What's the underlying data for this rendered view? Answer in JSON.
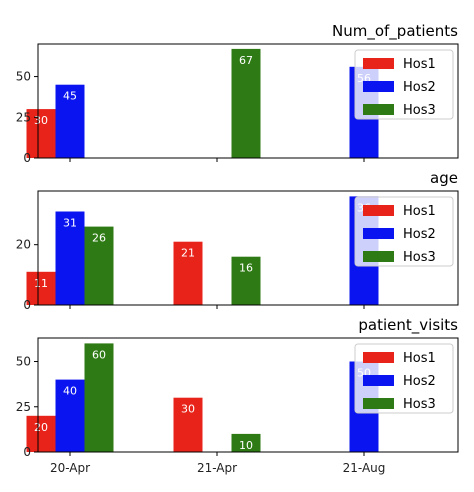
{
  "chart_data": [
    {
      "type": "bar",
      "title": "Num_of_patients",
      "categories": [
        "20-Apr",
        "21-Apr",
        "21-Aug"
      ],
      "series": [
        {
          "name": "Hos1",
          "values": [
            30,
            null,
            null
          ]
        },
        {
          "name": "Hos2",
          "values": [
            45,
            null,
            56
          ]
        },
        {
          "name": "Hos3",
          "values": [
            null,
            67,
            null
          ]
        }
      ],
      "yticks": [
        0,
        25,
        50
      ],
      "ylim": [
        0,
        70
      ],
      "xlabel": "",
      "ylabel": "",
      "legend": "top-right",
      "grid": false
    },
    {
      "type": "bar",
      "title": "age",
      "categories": [
        "20-Apr",
        "21-Apr",
        "21-Aug"
      ],
      "series": [
        {
          "name": "Hos1",
          "values": [
            11,
            21,
            null
          ]
        },
        {
          "name": "Hos2",
          "values": [
            31,
            null,
            36
          ]
        },
        {
          "name": "Hos3",
          "values": [
            26,
            16,
            null
          ]
        }
      ],
      "yticks": [
        0,
        20
      ],
      "ylim": [
        0,
        37.8
      ],
      "xlabel": "",
      "ylabel": "",
      "legend": "top-right",
      "grid": false
    },
    {
      "type": "bar",
      "title": "patient_visits",
      "categories": [
        "20-Apr",
        "21-Apr",
        "21-Aug"
      ],
      "series": [
        {
          "name": "Hos1",
          "values": [
            20,
            30,
            null
          ]
        },
        {
          "name": "Hos2",
          "values": [
            40,
            null,
            50
          ]
        },
        {
          "name": "Hos3",
          "values": [
            60,
            10,
            null
          ]
        }
      ],
      "yticks": [
        0,
        25,
        50
      ],
      "ylim": [
        0,
        63
      ],
      "xlabel": "",
      "ylabel": "",
      "legend": "top-right",
      "grid": false
    }
  ],
  "colors": {
    "Hos1": "#e8231a",
    "Hos2": "#0a14f0",
    "Hos3": "#2e7a14"
  }
}
